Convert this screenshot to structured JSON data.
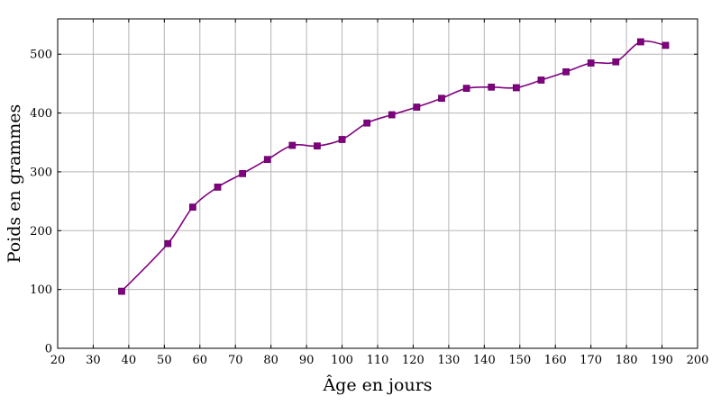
{
  "chart_data": {
    "type": "line",
    "title": "",
    "xlabel": "Âge en jours",
    "ylabel": "Poids en grammes",
    "xlim": [
      20,
      200
    ],
    "ylim": [
      0,
      560
    ],
    "xticks": [
      20,
      30,
      40,
      50,
      60,
      70,
      80,
      90,
      100,
      110,
      120,
      130,
      140,
      150,
      160,
      170,
      180,
      190,
      200
    ],
    "yticks": [
      0,
      100,
      200,
      300,
      400,
      500
    ],
    "grid": true,
    "series": [
      {
        "color": "#800080",
        "marker": "square",
        "smooth": true,
        "x": [
          38,
          51,
          58,
          65,
          72,
          79,
          86,
          93,
          100,
          107,
          114,
          121,
          128,
          135,
          142,
          149,
          156,
          163,
          170,
          177,
          184,
          191
        ],
        "y": [
          97,
          178,
          240,
          274,
          297,
          321,
          345,
          344,
          355,
          383,
          397,
          410,
          425,
          442,
          444,
          443,
          456,
          470,
          485,
          487,
          521,
          515
        ]
      }
    ]
  }
}
